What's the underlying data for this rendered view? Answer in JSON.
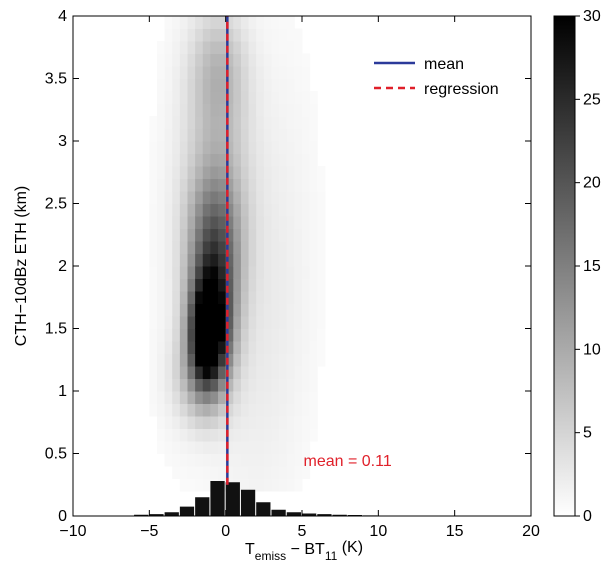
{
  "chart_data": {
    "type": "heatmap",
    "title": "",
    "xlabel": {
      "main": "T",
      "sub1": "emiss",
      "mid": " − BT",
      "sub2": "11",
      "unit": " (K)"
    },
    "ylabel": "CTH−10dBz ETH (km)",
    "xlim": [
      -10,
      20
    ],
    "ylim": [
      0,
      4
    ],
    "x_ticks": [
      -10,
      -5,
      0,
      5,
      10,
      15,
      20
    ],
    "x_tick_labels": [
      "−10",
      "−5",
      "0",
      "5",
      "10",
      "15",
      "20"
    ],
    "y_ticks": [
      0,
      0.5,
      1,
      1.5,
      2,
      2.5,
      3,
      3.5,
      4
    ],
    "y_tick_labels": [
      "0",
      "0.5",
      "1",
      "1.5",
      "2",
      "2.5",
      "3",
      "3.5",
      "4"
    ],
    "colorbar": {
      "range": [
        0,
        30
      ],
      "ticks": [
        0,
        5,
        10,
        15,
        20,
        25,
        30
      ],
      "tick_labels": [
        "0",
        "5",
        "10",
        "15",
        "20",
        "25",
        "30"
      ],
      "colormap": "white-to-black"
    },
    "density_blobs": [
      {
        "x": -1.2,
        "y": 1.45,
        "sx": 0.8,
        "sy": 0.28,
        "amp": 28
      },
      {
        "x": -0.8,
        "y": 1.75,
        "sx": 1.1,
        "sy": 0.45,
        "amp": 18
      },
      {
        "x": -0.7,
        "y": 2.3,
        "sx": 1.3,
        "sy": 0.4,
        "amp": 9
      },
      {
        "x": -0.6,
        "y": 3.0,
        "sx": 1.5,
        "sy": 0.55,
        "amp": 5
      },
      {
        "x": -0.5,
        "y": 3.6,
        "sx": 1.3,
        "sy": 0.35,
        "amp": 6
      },
      {
        "x": -1.8,
        "y": 1.1,
        "sx": 1.2,
        "sy": 0.25,
        "amp": 6
      },
      {
        "x": 1.5,
        "y": 1.5,
        "sx": 2.2,
        "sy": 1.2,
        "amp": 2
      },
      {
        "x": 4.0,
        "y": 2.3,
        "sx": 2.0,
        "sy": 1.5,
        "amp": 1
      },
      {
        "x": -3.5,
        "y": 2.0,
        "sx": 1.5,
        "sy": 1.5,
        "amp": 0.9
      }
    ],
    "series": [
      {
        "name": "mean",
        "type": "vertical-line",
        "x": 0.11,
        "y_range": [
          0.25,
          4
        ],
        "color": "#2b3a9a",
        "style": "solid"
      },
      {
        "name": "regression",
        "type": "line",
        "x": [
          0.11,
          0.11
        ],
        "y": [
          0.25,
          4
        ],
        "color": "#e0202a",
        "style": "dashed"
      }
    ],
    "histogram": {
      "bin_width": 1,
      "bins": [
        {
          "x": -5.5,
          "value": 0.01
        },
        {
          "x": -4.5,
          "value": 0.015
        },
        {
          "x": -3.5,
          "value": 0.03
        },
        {
          "x": -2.5,
          "value": 0.075
        },
        {
          "x": -1.5,
          "value": 0.15
        },
        {
          "x": -0.5,
          "value": 0.28
        },
        {
          "x": 0.5,
          "value": 0.27
        },
        {
          "x": 1.5,
          "value": 0.21
        },
        {
          "x": 2.5,
          "value": 0.11
        },
        {
          "x": 3.5,
          "value": 0.05
        },
        {
          "x": 4.5,
          "value": 0.03
        },
        {
          "x": 5.5,
          "value": 0.02
        },
        {
          "x": 6.5,
          "value": 0.015
        },
        {
          "x": 7.5,
          "value": 0.01
        },
        {
          "x": 8.5,
          "value": 0.008
        },
        {
          "x": 9.5,
          "value": 0.005
        },
        {
          "x": 10.5,
          "value": 0.004
        }
      ]
    },
    "annotation": {
      "text": "mean = 0.11",
      "x": 5.1,
      "y": 0.45,
      "color": "#e0202a"
    },
    "legend": {
      "placement": "top-right",
      "entries": [
        {
          "label": "mean",
          "color": "#2b3a9a",
          "style": "solid"
        },
        {
          "label": "regression",
          "color": "#e0202a",
          "style": "dashed"
        }
      ]
    },
    "grid": false
  }
}
